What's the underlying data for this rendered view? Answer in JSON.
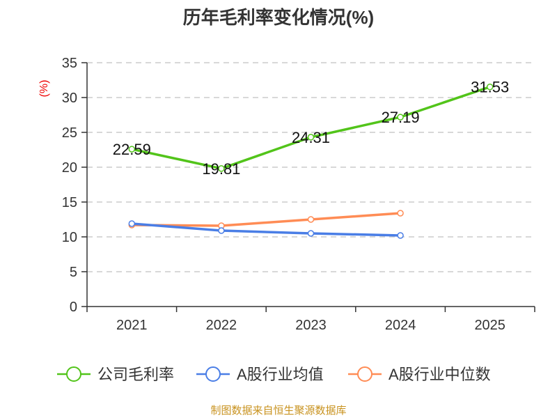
{
  "chart_data": {
    "type": "line",
    "title": "历年毛利率变化情况(%)",
    "ylabel": "(%)",
    "xlabel": "",
    "ylim": [
      0,
      35
    ],
    "yticks": [
      0,
      5,
      10,
      15,
      20,
      25,
      30,
      35
    ],
    "categories": [
      "2021",
      "2022",
      "2023",
      "2024",
      "2025"
    ],
    "grid": true,
    "legend_position": "bottom",
    "series": [
      {
        "name": "公司毛利率",
        "color": "#52c41a",
        "values": [
          22.59,
          19.81,
          24.31,
          27.19,
          31.53
        ],
        "labels": [
          "22.59",
          "19.81",
          "24.31",
          "27.19",
          "31.53"
        ]
      },
      {
        "name": "A股行业均值",
        "color": "#4a7ee6",
        "values": [
          11.9,
          10.9,
          10.5,
          10.2,
          null
        ]
      },
      {
        "name": "A股行业中位数",
        "color": "#ff8c55",
        "values": [
          11.7,
          11.6,
          12.5,
          13.4,
          null
        ]
      }
    ]
  },
  "source": "制图数据来自恒生聚源数据库"
}
